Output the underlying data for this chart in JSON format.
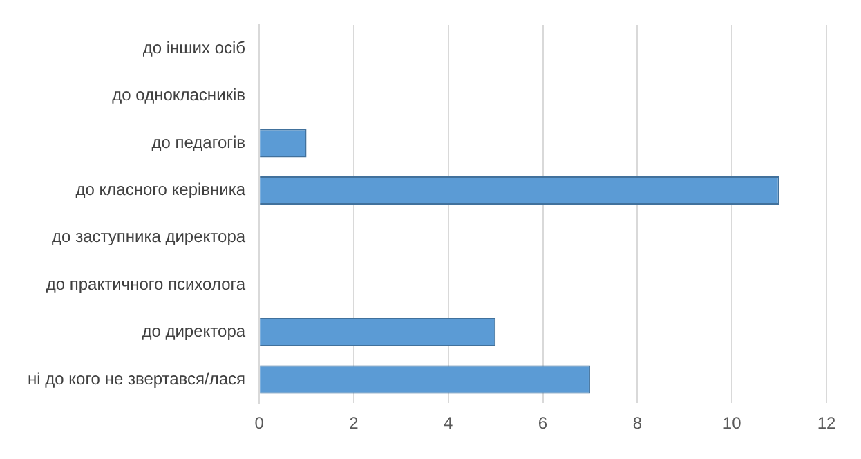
{
  "chart_data": {
    "type": "bar",
    "orientation": "horizontal",
    "categories": [
      "до інших осіб",
      "до однокласників",
      "до педагогів",
      "до класного керівника",
      "до заступника директора",
      "до практичного психолога",
      "до директора",
      "ні до кого не звертався/лася"
    ],
    "values": [
      0,
      0,
      1,
      11,
      0,
      0,
      5,
      7
    ],
    "color": "#5b9bd5",
    "xlim": [
      0,
      12
    ],
    "xticks": [
      0,
      2,
      4,
      6,
      8,
      10,
      12
    ],
    "grid": "x",
    "legend": false
  }
}
